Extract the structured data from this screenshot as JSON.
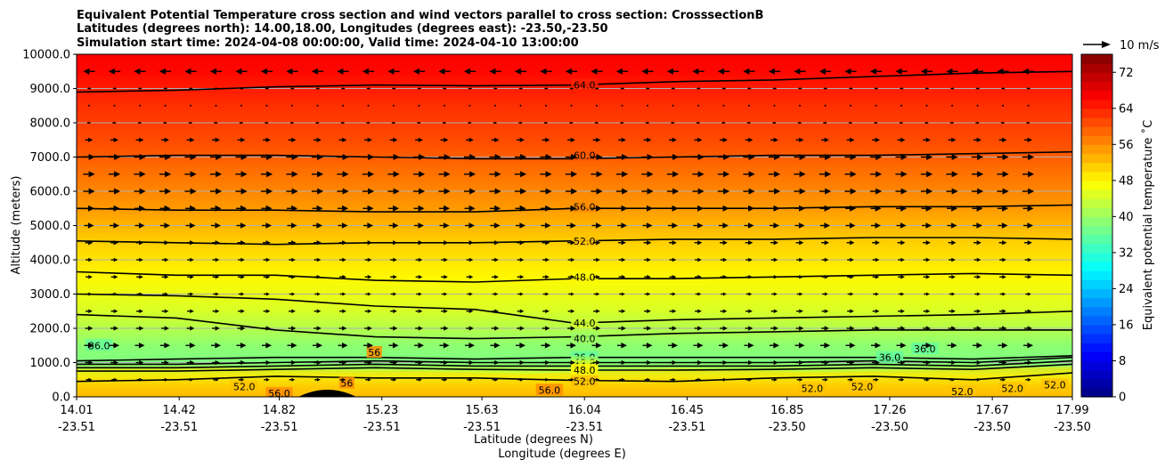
{
  "chart_data": {
    "type": "heatmap",
    "title_lines": [
      "Equivalent Potential Temperature cross section and wind vectors parallel to cross section: CrosssectionB",
      "Latitudes (degrees north): 14.00,18.00, Longitudes (degrees east): -23.50,-23.50",
      "Simulation start time: 2024-04-08 00:00:00, Valid time: 2024-04-10 13:00:00"
    ],
    "ylabel": "Altitude (meters)",
    "xlabel": "Latitude (degrees N)",
    "xlabel2": "Longitude (degrees E)",
    "ylim": [
      0,
      10000
    ],
    "yticks": [
      "0.0",
      "1000.0",
      "2000.0",
      "3000.0",
      "4000.0",
      "5000.0",
      "6000.0",
      "7000.0",
      "8000.0",
      "9000.0",
      "10000.0"
    ],
    "xlim": [
      14.01,
      17.99
    ],
    "xticks": [
      {
        "lat": "14.01",
        "lon": "-23.51"
      },
      {
        "lat": "14.42",
        "lon": "-23.51"
      },
      {
        "lat": "14.82",
        "lon": "-23.51"
      },
      {
        "lat": "15.23",
        "lon": "-23.51"
      },
      {
        "lat": "15.63",
        "lon": "-23.51"
      },
      {
        "lat": "16.04",
        "lon": "-23.51"
      },
      {
        "lat": "16.45",
        "lon": "-23.51"
      },
      {
        "lat": "16.85",
        "lon": "-23.50"
      },
      {
        "lat": "17.26",
        "lon": "-23.50"
      },
      {
        "lat": "17.67",
        "lon": "-23.50"
      },
      {
        "lat": "17.99",
        "lon": "-23.50"
      }
    ],
    "grid": true,
    "colorbar": {
      "label": "Equivalent potential temperature ˚C",
      "min": 0,
      "max": 76,
      "step": 2,
      "ticks": [
        "0",
        "8",
        "16",
        "24",
        "32",
        "40",
        "48",
        "56",
        "64",
        "72"
      ]
    },
    "theta_e_profile": [
      {
        "alt": 0,
        "value": 54
      },
      {
        "alt": 300,
        "value": 52
      },
      {
        "alt": 600,
        "value": 46
      },
      {
        "alt": 1000,
        "value": 38
      },
      {
        "alt": 1500,
        "value": 39
      },
      {
        "alt": 2000,
        "value": 42
      },
      {
        "alt": 2600,
        "value": 45
      },
      {
        "alt": 3500,
        "value": 48
      },
      {
        "alt": 4500,
        "value": 51
      },
      {
        "alt": 5500,
        "value": 55
      },
      {
        "alt": 6500,
        "value": 58
      },
      {
        "alt": 7500,
        "value": 61
      },
      {
        "alt": 8500,
        "value": 63
      },
      {
        "alt": 9500,
        "value": 66
      },
      {
        "alt": 10000,
        "value": 67
      }
    ],
    "contours": [
      {
        "value": "64.0",
        "alts": [
          8900,
          8950,
          9050,
          9100,
          9080,
          9100,
          9200,
          9250,
          9350,
          9450,
          9500
        ]
      },
      {
        "value": "60.0",
        "alts": [
          7000,
          7050,
          7050,
          7000,
          6950,
          6950,
          7000,
          7050,
          7050,
          7100,
          7150
        ]
      },
      {
        "value": "56.0",
        "alts": [
          5500,
          5450,
          5450,
          5400,
          5400,
          5500,
          5500,
          5500,
          5550,
          5550,
          5600
        ]
      },
      {
        "value": "52.0",
        "alts": [
          4550,
          4500,
          4450,
          4500,
          4500,
          4550,
          4600,
          4600,
          4650,
          4650,
          4600
        ]
      },
      {
        "value": "48.0",
        "alts": [
          3650,
          3550,
          3550,
          3400,
          3350,
          3450,
          3450,
          3500,
          3550,
          3600,
          3550
        ]
      },
      {
        "value": "44.0",
        "alts": [
          3000,
          2950,
          2850,
          2650,
          2550,
          2150,
          2250,
          2300,
          2350,
          2400,
          2500
        ]
      },
      {
        "value": "40.0",
        "alts": [
          2400,
          2300,
          1950,
          1750,
          1700,
          1750,
          1850,
          1900,
          1950,
          1950,
          1950
        ]
      },
      {
        "value": "36.0",
        "alts": [
          1050,
          1100,
          1150,
          1150,
          1100,
          1150,
          1150,
          1150,
          1150,
          1100,
          1200
        ]
      },
      {
        "value": "40.0",
        "alts": [
          950,
          950,
          1000,
          1050,
          1000,
          1000,
          1000,
          1000,
          1050,
          1000,
          1150
        ]
      },
      {
        "value": "44.0",
        "alts": [
          850,
          850,
          900,
          950,
          900,
          900,
          900,
          900,
          950,
          900,
          1050
        ]
      },
      {
        "value": "48.0",
        "alts": [
          750,
          750,
          800,
          850,
          800,
          780,
          780,
          800,
          850,
          800,
          950
        ]
      },
      {
        "value": "52.0",
        "alts": [
          450,
          500,
          600,
          550,
          550,
          480,
          450,
          550,
          600,
          500,
          700
        ]
      }
    ],
    "contour_labels": [
      {
        "text": "64.0",
        "lat": 16.04,
        "alt": 9100
      },
      {
        "text": "60.0",
        "lat": 16.04,
        "alt": 7050
      },
      {
        "text": "56.0",
        "lat": 16.04,
        "alt": 5550
      },
      {
        "text": "52.0",
        "lat": 16.04,
        "alt": 4550
      },
      {
        "text": "48.0",
        "lat": 16.04,
        "alt": 3500
      },
      {
        "text": "44.0",
        "lat": 16.04,
        "alt": 2150
      },
      {
        "text": "40.0",
        "lat": 16.04,
        "alt": 1700
      },
      {
        "text": "36.0",
        "lat": 16.04,
        "alt": 1150
      },
      {
        "text": "40.0",
        "lat": 16.04,
        "alt": 1000
      },
      {
        "text": "44.0",
        "lat": 16.04,
        "alt": 900
      },
      {
        "text": "48.0",
        "lat": 16.04,
        "alt": 780
      },
      {
        "text": "52.0",
        "lat": 16.04,
        "alt": 450
      },
      {
        "text": "36.0",
        "lat": 14.1,
        "alt": 1500
      },
      {
        "text": "36.0",
        "lat": 17.26,
        "alt": 1150
      },
      {
        "text": "36.0",
        "lat": 17.4,
        "alt": 1400
      },
      {
        "text": "52.0",
        "lat": 14.68,
        "alt": 300
      },
      {
        "text": "56.0",
        "lat": 14.82,
        "alt": 100
      },
      {
        "text": "56",
        "lat": 15.09,
        "alt": 400
      },
      {
        "text": "56",
        "lat": 15.2,
        "alt": 1300
      },
      {
        "text": "56.0",
        "lat": 15.9,
        "alt": 200
      },
      {
        "text": "52.0",
        "lat": 16.95,
        "alt": 250
      },
      {
        "text": "52.0",
        "lat": 17.15,
        "alt": 300
      },
      {
        "text": "52.0",
        "lat": 17.55,
        "alt": 150
      },
      {
        "text": "52.0",
        "lat": 17.75,
        "alt": 250
      },
      {
        "text": "52.0",
        "lat": 17.92,
        "alt": 350
      }
    ],
    "wind": {
      "reference_label": "10 m/s",
      "levels": [
        {
          "alt": 9500,
          "u": -6
        },
        {
          "alt": 9000,
          "u": -2
        },
        {
          "alt": 8500,
          "u": 0.5
        },
        {
          "alt": 8000,
          "u": 2
        },
        {
          "alt": 7500,
          "u": 4
        },
        {
          "alt": 7000,
          "u": 6
        },
        {
          "alt": 6500,
          "u": 6
        },
        {
          "alt": 6000,
          "u": 6
        },
        {
          "alt": 5500,
          "u": 5.5
        },
        {
          "alt": 5000,
          "u": 5
        },
        {
          "alt": 4500,
          "u": 4
        },
        {
          "alt": 4000,
          "u": 3.5
        },
        {
          "alt": 3500,
          "u": 3.5
        },
        {
          "alt": 3000,
          "u": 3
        },
        {
          "alt": 2500,
          "u": 3.5
        },
        {
          "alt": 2000,
          "u": 4
        },
        {
          "alt": 1500,
          "u": 5
        },
        {
          "alt": 1000,
          "u": 4
        },
        {
          "alt": 500,
          "u": 3
        }
      ]
    }
  }
}
